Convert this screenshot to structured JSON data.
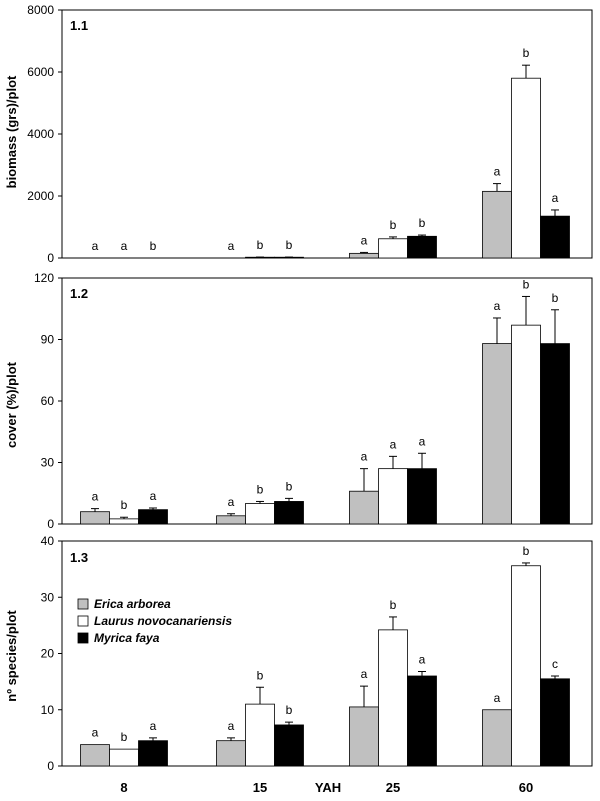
{
  "chart_data": [
    {
      "type": "bar",
      "panel_label": "1.1",
      "ylabel": "biomass (grs)/plot",
      "ylim": [
        0,
        8000
      ],
      "yticks": [
        0,
        2000,
        4000,
        6000,
        8000
      ],
      "categories": [
        "8",
        "15",
        "25",
        "60"
      ],
      "series": [
        {
          "name": "Erica arborea",
          "values": [
            0,
            0,
            150,
            2150
          ],
          "errors": [
            0,
            0,
            30,
            250
          ],
          "letters": [
            "a",
            "a",
            "a",
            "a"
          ]
        },
        {
          "name": "Laurus novocanariensis",
          "values": [
            0,
            25,
            620,
            5800
          ],
          "errors": [
            0,
            5,
            60,
            420
          ],
          "letters": [
            "a",
            "b",
            "b",
            "b"
          ]
        },
        {
          "name": "Myrica faya",
          "values": [
            0,
            25,
            700,
            1350
          ],
          "errors": [
            0,
            5,
            40,
            200
          ],
          "letters": [
            "b",
            "b",
            "b",
            "a"
          ]
        }
      ]
    },
    {
      "type": "bar",
      "panel_label": "1.2",
      "ylabel": "cover (%)/plot",
      "ylim": [
        0,
        120
      ],
      "yticks": [
        0,
        30,
        60,
        90,
        120
      ],
      "categories": [
        "8",
        "15",
        "25",
        "60"
      ],
      "series": [
        {
          "name": "Erica arborea",
          "values": [
            6,
            4,
            16,
            88
          ],
          "errors": [
            1.5,
            1,
            11,
            12.5
          ],
          "letters": [
            "a",
            "a",
            "a",
            "a"
          ]
        },
        {
          "name": "Laurus novocanariensis",
          "values": [
            2.5,
            10,
            27,
            97
          ],
          "errors": [
            0.8,
            1,
            6,
            14
          ],
          "letters": [
            "b",
            "b",
            "a",
            "b"
          ]
        },
        {
          "name": "Myrica faya",
          "values": [
            7,
            11,
            27,
            88
          ],
          "errors": [
            0.8,
            1.5,
            7.5,
            16.5
          ],
          "letters": [
            "a",
            "b",
            "a",
            "b"
          ]
        }
      ]
    },
    {
      "type": "bar",
      "panel_label": "1.3",
      "ylabel": "nº species/plot",
      "ylim": [
        0,
        40
      ],
      "yticks": [
        0,
        10,
        20,
        30,
        40
      ],
      "categories": [
        "8",
        "15",
        "25",
        "60"
      ],
      "series": [
        {
          "name": "Erica arborea",
          "values": [
            3.8,
            4.5,
            10.5,
            10
          ],
          "errors": [
            0,
            0.5,
            3.7,
            0
          ],
          "letters": [
            "a",
            "a",
            "a",
            "a"
          ]
        },
        {
          "name": "Laurus novocanariensis",
          "values": [
            3,
            11,
            24.2,
            35.6
          ],
          "errors": [
            0,
            3,
            2.3,
            0.5
          ],
          "letters": [
            "b",
            "b",
            "b",
            "b"
          ]
        },
        {
          "name": "Myrica faya",
          "values": [
            4.5,
            7.3,
            16,
            15.5
          ],
          "errors": [
            0.5,
            0.5,
            0.8,
            0.5
          ],
          "letters": [
            "a",
            "b",
            "a",
            "c"
          ]
        }
      ]
    }
  ],
  "xaxis": {
    "categories": [
      "8",
      "15",
      "25",
      "60"
    ],
    "label": "YAH"
  },
  "legend": {
    "position": "top-left of panel 1.3",
    "entries": [
      "Erica arborea",
      "Laurus novocanariensis",
      "Myrica faya"
    ]
  },
  "colors": {
    "Erica arborea": "#c0c0c0",
    "Laurus novocanariensis": "#ffffff",
    "Myrica faya": "#000000"
  }
}
